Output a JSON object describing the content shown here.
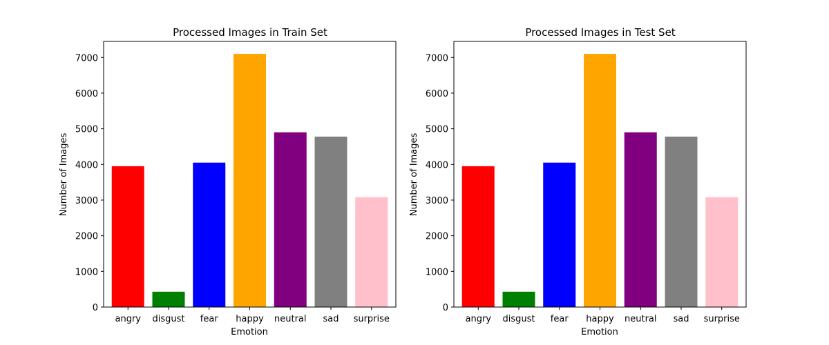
{
  "chart_data": [
    {
      "type": "bar",
      "title": "Processed Images in Train Set",
      "xlabel": "Emotion",
      "ylabel": "Number of Images",
      "categories": [
        "angry",
        "disgust",
        "fear",
        "happy",
        "neutral",
        "sad",
        "surprise"
      ],
      "values": [
        3950,
        430,
        4050,
        7100,
        4900,
        4780,
        3080
      ],
      "colors": [
        "#ff0000",
        "#008000",
        "#0000ff",
        "#ffa500",
        "#800080",
        "#808080",
        "#ffc0cb"
      ],
      "yticks": [
        0,
        1000,
        2000,
        3000,
        4000,
        5000,
        6000,
        7000
      ],
      "ylim": [
        0,
        7450
      ],
      "grid": false,
      "legend": "none"
    },
    {
      "type": "bar",
      "title": "Processed Images in Test Set",
      "xlabel": "Emotion",
      "ylabel": "Number of Images",
      "categories": [
        "angry",
        "disgust",
        "fear",
        "happy",
        "neutral",
        "sad",
        "surprise"
      ],
      "values": [
        3950,
        430,
        4050,
        7100,
        4900,
        4780,
        3080
      ],
      "colors": [
        "#ff0000",
        "#008000",
        "#0000ff",
        "#ffa500",
        "#800080",
        "#808080",
        "#ffc0cb"
      ],
      "yticks": [
        0,
        1000,
        2000,
        3000,
        4000,
        5000,
        6000,
        7000
      ],
      "ylim": [
        0,
        7450
      ],
      "grid": false,
      "legend": "none"
    }
  ]
}
